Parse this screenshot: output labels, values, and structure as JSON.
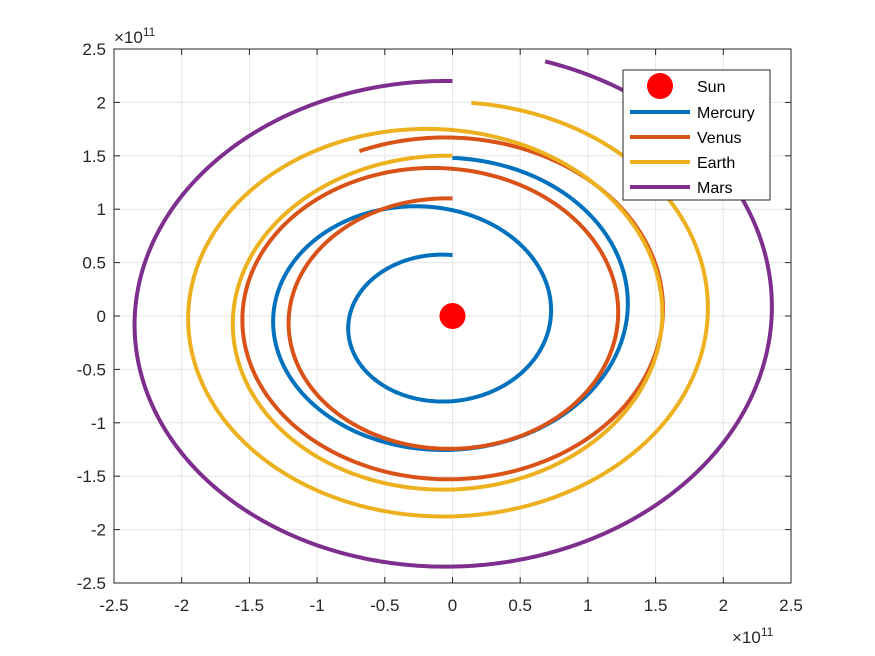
{
  "chart_data": {
    "type": "line",
    "title": "",
    "xlabel": "",
    "ylabel": "",
    "xlim": [
      -2.5,
      2.5
    ],
    "ylim": [
      -2.5,
      2.5
    ],
    "x_exponent": "×10",
    "x_exponent_power": "11",
    "y_exponent": "×10",
    "y_exponent_power": "11",
    "xticks": [
      "-2.5",
      "-2",
      "-1.5",
      "-1",
      "-0.5",
      "0",
      "0.5",
      "1",
      "1.5",
      "2",
      "2.5"
    ],
    "yticks": [
      "2.5",
      "2",
      "1.5",
      "1",
      "0.5",
      "0",
      "-0.5",
      "-1",
      "-1.5",
      "-2",
      "-2.5"
    ],
    "grid": true,
    "legend_position": "top-right",
    "sun": {
      "name": "Sun",
      "x": 0,
      "y": 0,
      "color": "#ff0000"
    },
    "series": [
      {
        "name": "Mercury",
        "color": "#0072bd",
        "start_radius": 0.57,
        "end_radius": 1.48,
        "end_angle_deg": 90,
        "turns": 2.0,
        "x_shift": -0.2
      },
      {
        "name": "Venus",
        "color": "#d95319",
        "start_radius": 1.1,
        "end_radius": 1.69,
        "end_angle_deg": 114,
        "turns": 2.0,
        "x_shift": -0.1
      },
      {
        "name": "Earth",
        "color": "#edb120",
        "start_radius": 1.5,
        "end_radius": 2.0,
        "end_angle_deg": 266,
        "turns": 1.5,
        "x_shift": -0.15
      },
      {
        "name": "Mars",
        "color": "#7e2f8e",
        "start_radius": 2.2,
        "end_radius": 2.48,
        "end_angle_deg": 74,
        "turns": 1.0,
        "x_shift": -0.1
      }
    ]
  }
}
